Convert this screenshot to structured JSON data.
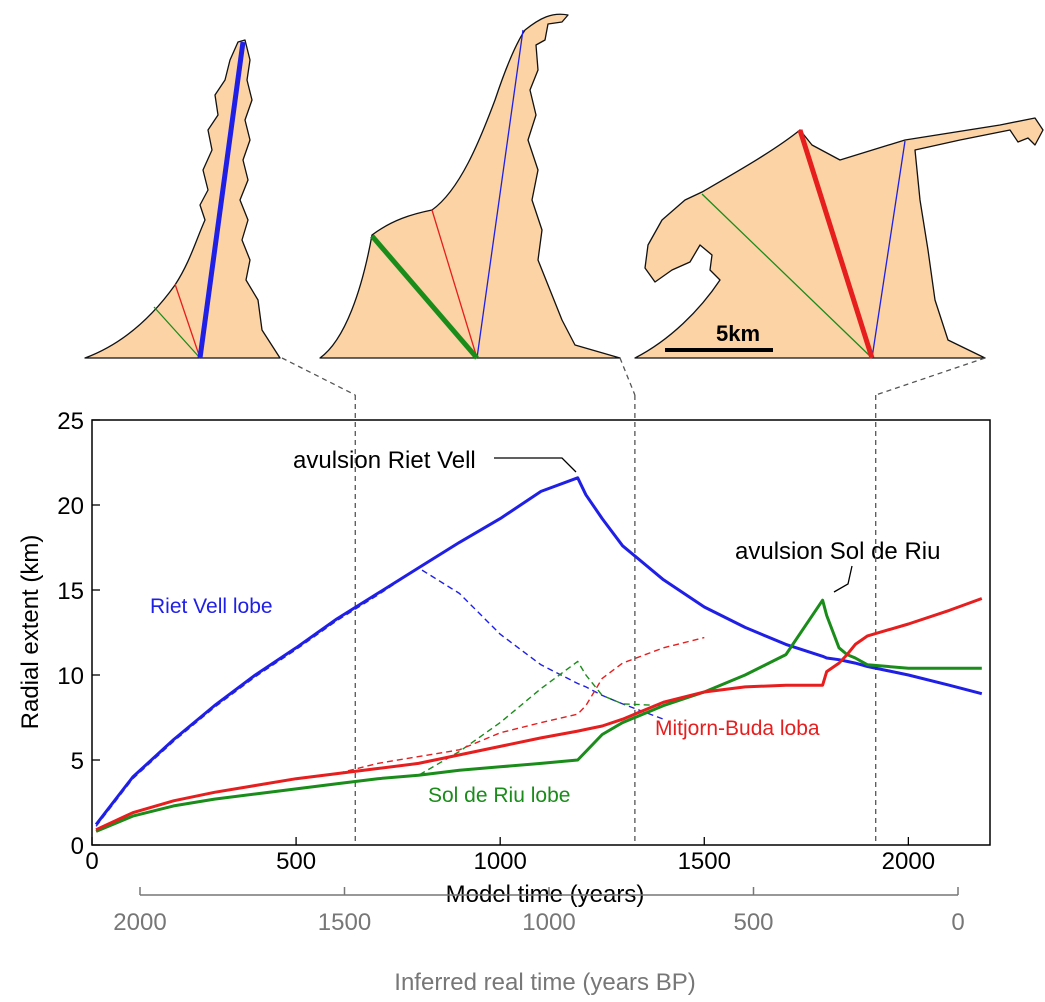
{
  "maps": {
    "scale_bar_label": "5km"
  },
  "chart_data": {
    "type": "line",
    "xlabel": "Model time (years)",
    "ylabel": "Radial extent (km)",
    "x2label": "Inferred real time (years BP)",
    "xlim": [
      0,
      2200
    ],
    "ylim": [
      0,
      25
    ],
    "xticks": [
      0,
      500,
      1000,
      1500,
      2000
    ],
    "yticks": [
      0,
      5,
      10,
      15,
      20,
      25
    ],
    "x2lim": [
      2000,
      0
    ],
    "x2ticks": [
      2000,
      1500,
      1000,
      500,
      0
    ],
    "snapshot_times": [
      645,
      1330,
      1920
    ],
    "annotations": [
      "avulsion Riet Vell",
      "avulsion Sol de Riu"
    ],
    "x": [
      10,
      100,
      200,
      300,
      400,
      500,
      600,
      700,
      800,
      900,
      1000,
      1100,
      1190,
      1210,
      1250,
      1300,
      1400,
      1500,
      1600,
      1700,
      1790,
      1800,
      1830,
      1850,
      1870,
      1900,
      2000,
      2100,
      2180
    ],
    "series": [
      {
        "name": "Riet Vell lobe",
        "color": "#1f1fe6",
        "dashed": false,
        "values": [
          1.2,
          4.0,
          6.2,
          8.2,
          10.0,
          11.6,
          13.3,
          14.8,
          16.3,
          17.8,
          19.2,
          20.8,
          21.6,
          20.6,
          19.2,
          17.6,
          15.6,
          14.0,
          12.8,
          11.8,
          11.1,
          11.0,
          10.9,
          10.8,
          10.7,
          10.5,
          10.0,
          9.4,
          8.9
        ]
      },
      {
        "name": "Sol de Riu lobe",
        "color": "#1a8c1a",
        "dashed": false,
        "values": [
          0.8,
          1.7,
          2.3,
          2.7,
          3.0,
          3.3,
          3.6,
          3.9,
          4.1,
          4.4,
          4.6,
          4.8,
          5.0,
          5.5,
          6.5,
          7.2,
          8.2,
          9.0,
          10.0,
          11.2,
          14.4,
          13.5,
          11.6,
          11.2,
          11.0,
          10.6,
          10.4,
          10.4,
          10.4
        ]
      },
      {
        "name": "Mitjorn-Buda loba",
        "color": "#e61e1e",
        "dashed": false,
        "values": [
          0.9,
          1.9,
          2.6,
          3.1,
          3.5,
          3.9,
          4.2,
          4.5,
          4.8,
          5.3,
          5.8,
          6.3,
          6.7,
          6.8,
          7.0,
          7.4,
          8.4,
          9.0,
          9.3,
          9.4,
          9.4,
          10.2,
          10.7,
          11.2,
          11.8,
          12.3,
          13.0,
          13.8,
          14.5
        ]
      },
      {
        "color": "#1f1fe6",
        "dashed": true,
        "values": [
          1.1,
          3.9,
          6.1,
          8.1,
          9.9,
          11.5,
          13.2,
          14.7,
          16.3,
          14.8,
          12.4,
          10.6,
          9.5,
          9.3,
          8.8,
          8.3,
          7.4,
          null,
          null,
          null,
          null,
          null,
          null,
          null,
          null,
          null,
          null,
          null,
          null
        ]
      },
      {
        "color": "#1a8c1a",
        "dashed": true,
        "values": [
          0.8,
          1.7,
          2.3,
          2.7,
          3.0,
          3.3,
          3.6,
          3.9,
          4.1,
          5.5,
          7.2,
          9.2,
          10.8,
          10.0,
          8.8,
          8.3,
          8.2,
          null,
          null,
          null,
          null,
          null,
          null,
          null,
          null,
          null,
          null,
          null,
          null
        ]
      },
      {
        "color": "#e61e1e",
        "dashed": true,
        "values": [
          0.9,
          1.9,
          2.6,
          3.1,
          3.5,
          3.9,
          4.2,
          4.8,
          5.2,
          5.6,
          6.6,
          7.2,
          7.7,
          8.2,
          9.8,
          10.7,
          11.6,
          12.2,
          null,
          null,
          null,
          null,
          null,
          null,
          null,
          null,
          null,
          null,
          null
        ]
      }
    ]
  }
}
